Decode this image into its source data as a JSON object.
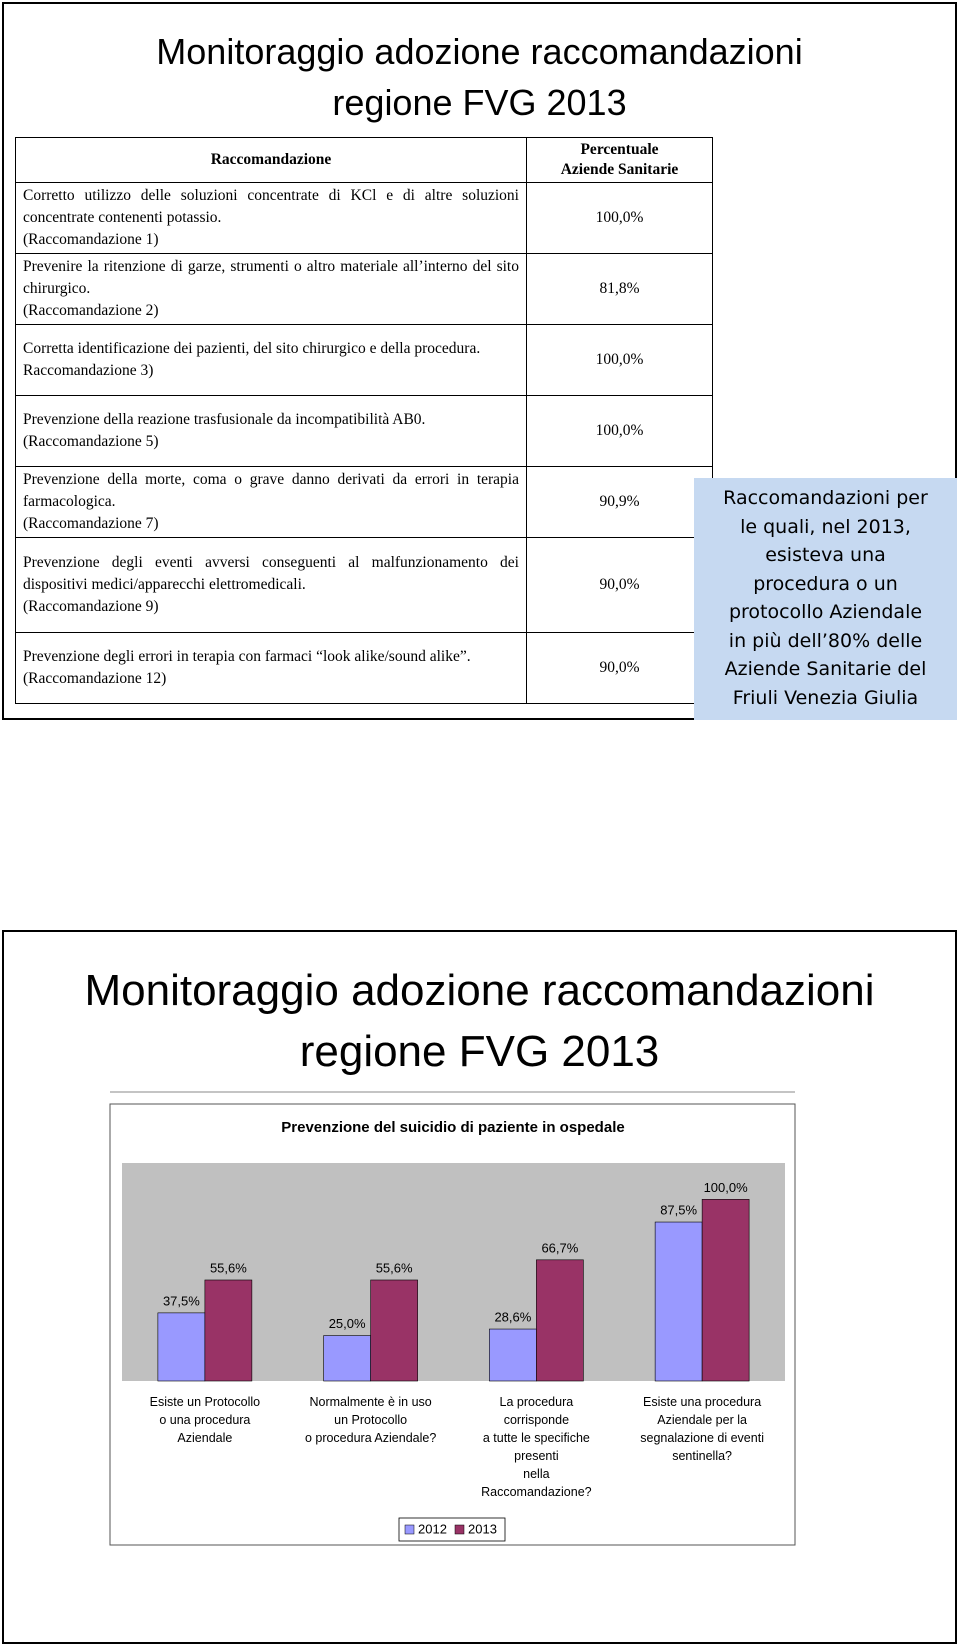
{
  "slide1": {
    "title": "Monitoraggio adozione raccomandazioni\nregione FVG 2013",
    "table": {
      "headers": [
        "Raccomandazione",
        "Percentuale\nAziende Sanitarie"
      ],
      "rows": [
        [
          "Corretto utilizzo delle soluzioni concentrate di KCl e di altre soluzioni concentrate contenenti potassio.\n(Raccomandazione 1)",
          "100,0%"
        ],
        [
          "Prevenire la ritenzione di garze, strumenti o altro materiale all’interno del sito chirurgico.\n(Raccomandazione 2)",
          "81,8%"
        ],
        [
          "Corretta identificazione dei pazienti, del sito chirurgico e della procedura.\nRaccomandazione 3)",
          "100,0%"
        ],
        [
          "Prevenzione della reazione trasfusionale da incompatibilità AB0.\n(Raccomandazione 5)",
          "100,0%"
        ],
        [
          "Prevenzione della morte, coma o grave danno derivati da errori in terapia farmacologica.\n(Raccomandazione 7)",
          "90,9%"
        ],
        [
          "Prevenzione degli eventi avversi conseguenti al malfunzionamento dei dispositivi medici/apparecchi elettromedicali.\n(Raccomandazione 9)",
          "90,0%"
        ],
        [
          "Prevenzione degli errori in terapia con farmaci “look alike/sound alike”.\n(Raccomandazione 12)",
          "90,0%"
        ]
      ]
    },
    "note": "Raccomandazioni per\nle quali, nel 2013,\nesisteva una\nprocedura o un\nprotocollo Aziendale\nin più dell’80% delle\nAziende Sanitarie del\nFriuli Venezia Giulia"
  },
  "slide2": {
    "title": "Monitoraggio adozione raccomandazioni\nregione FVG 2013"
  },
  "chart_data": {
    "type": "bar",
    "title": "Prevenzione del suicidio di paziente in ospedale",
    "categories": [
      "Esiste un Protocollo\no una procedura\nAziendale",
      "Normalmente è in uso\nun Protocollo\no procedura Aziendale?",
      "La procedura\ncorrisponde\na tutte le specifiche\npresenti\nnella\nRaccomandazione?",
      "Esiste una procedura\nAziendale per la\nsegnalazione di eventi\nsentinella?"
    ],
    "series": [
      {
        "name": "2012",
        "color": "#9999ff",
        "values": [
          37.5,
          25.0,
          28.6,
          87.5
        ],
        "value_labels": [
          "37,5%",
          "25,0%",
          "28,6%",
          "87,5%"
        ]
      },
      {
        "name": "2013",
        "color": "#993366",
        "values": [
          55.6,
          55.6,
          66.7,
          100.0
        ],
        "value_labels": [
          "55,6%",
          "55,6%",
          "66,7%",
          "100,0%"
        ]
      }
    ],
    "ylim": [
      0,
      120
    ],
    "grid": false,
    "legend": "bottom"
  }
}
